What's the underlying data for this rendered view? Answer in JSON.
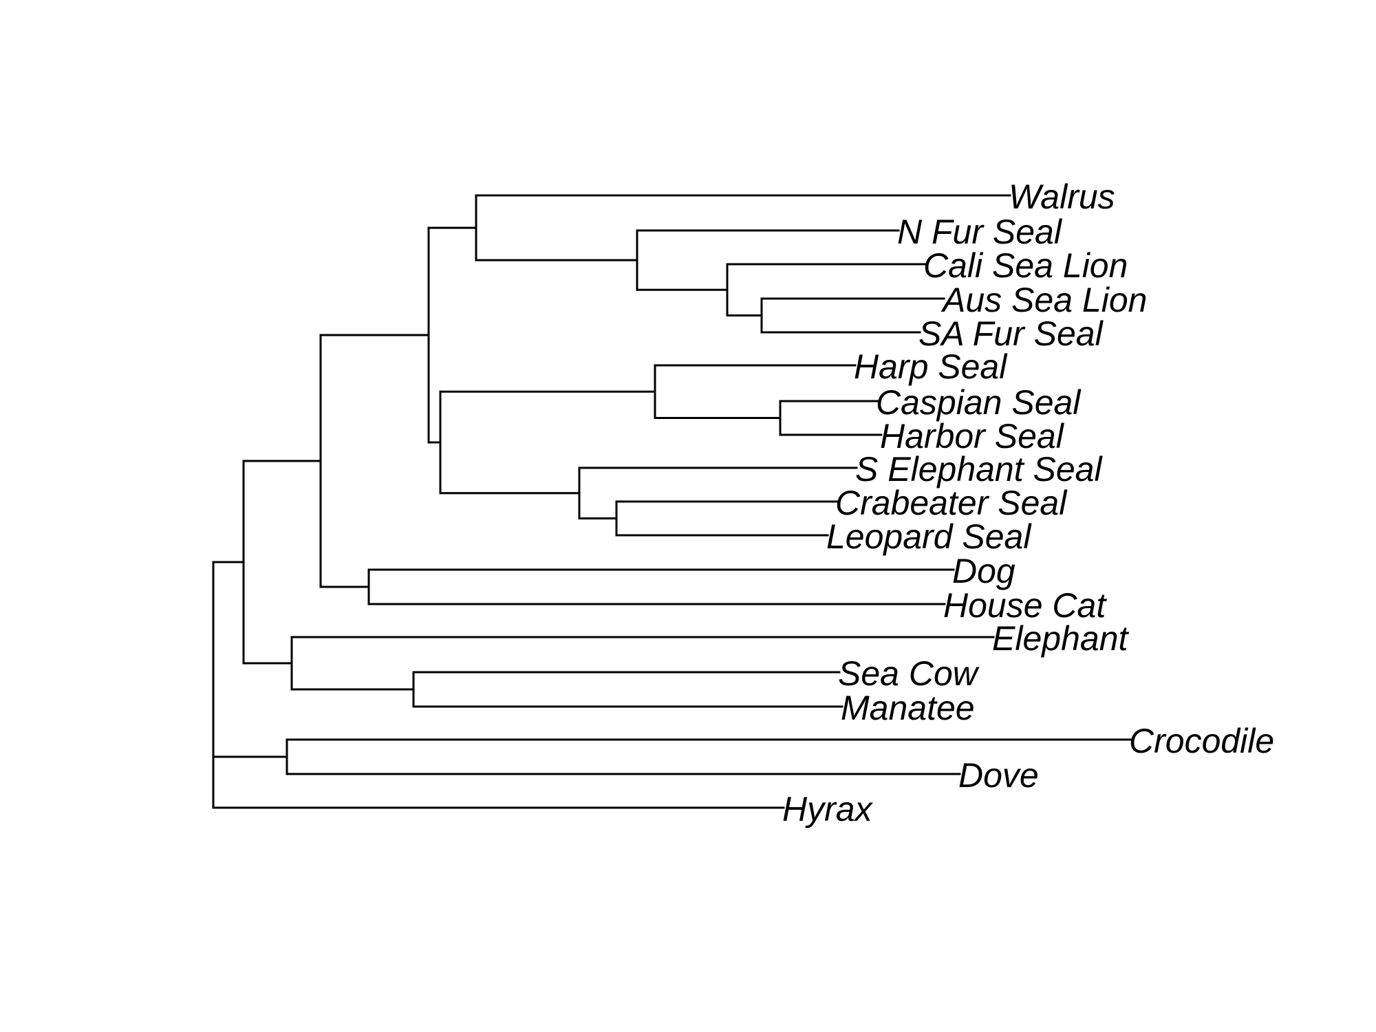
{
  "tree": {
    "id": "root",
    "children": [
      {
        "id": "n_mammals",
        "children": [
          {
            "id": "n_carnivora_group",
            "children": [
              {
                "id": "n_pinnipeds",
                "children": [
                  {
                    "id": "n_otarioidea",
                    "children": [
                      {
                        "id": "walrus",
                        "label": "Walrus"
                      },
                      {
                        "id": "n_otariidae",
                        "children": [
                          {
                            "id": "n_fur_seal",
                            "label": "N Fur Seal"
                          },
                          {
                            "id": "n_sealions",
                            "children": [
                              {
                                "id": "cali_sea_lion",
                                "label": "Cali Sea Lion"
                              },
                              {
                                "id": "n_aus_sa",
                                "children": [
                                  {
                                    "id": "aus_sea_lion",
                                    "label": "Aus Sea Lion"
                                  },
                                  {
                                    "id": "sa_fur_seal",
                                    "label": "SA Fur Seal"
                                  }
                                ]
                              }
                            ]
                          }
                        ]
                      }
                    ]
                  },
                  {
                    "id": "n_phocidae",
                    "children": [
                      {
                        "id": "n_phocinae",
                        "children": [
                          {
                            "id": "harp_seal",
                            "label": "Harp Seal"
                          },
                          {
                            "id": "n_caspian_harbor",
                            "children": [
                              {
                                "id": "caspian_seal",
                                "label": "Caspian Seal"
                              },
                              {
                                "id": "harbor_seal",
                                "label": "Harbor Seal"
                              }
                            ]
                          }
                        ]
                      },
                      {
                        "id": "n_monachinae",
                        "children": [
                          {
                            "id": "s_elephant_seal",
                            "label": "S Elephant Seal"
                          },
                          {
                            "id": "n_crab_leopard",
                            "children": [
                              {
                                "id": "crabeater_seal",
                                "label": "Crabeater Seal"
                              },
                              {
                                "id": "leopard_seal",
                                "label": "Leopard Seal"
                              }
                            ]
                          }
                        ]
                      }
                    ]
                  }
                ]
              },
              {
                "id": "n_dog_cat",
                "children": [
                  {
                    "id": "dog",
                    "label": "Dog"
                  },
                  {
                    "id": "house_cat",
                    "label": "House Cat"
                  }
                ]
              }
            ]
          },
          {
            "id": "n_paenungulata",
            "children": [
              {
                "id": "elephant",
                "label": "Elephant"
              },
              {
                "id": "n_sirenia",
                "children": [
                  {
                    "id": "sea_cow",
                    "label": "Sea Cow"
                  },
                  {
                    "id": "manatee",
                    "label": "Manatee"
                  }
                ]
              }
            ]
          }
        ]
      },
      {
        "id": "n_sauropsids",
        "children": [
          {
            "id": "crocodile",
            "label": "Crocodile"
          },
          {
            "id": "dove",
            "label": "Dove"
          }
        ]
      },
      {
        "id": "hyrax",
        "label": "Hyrax"
      }
    ]
  }
}
